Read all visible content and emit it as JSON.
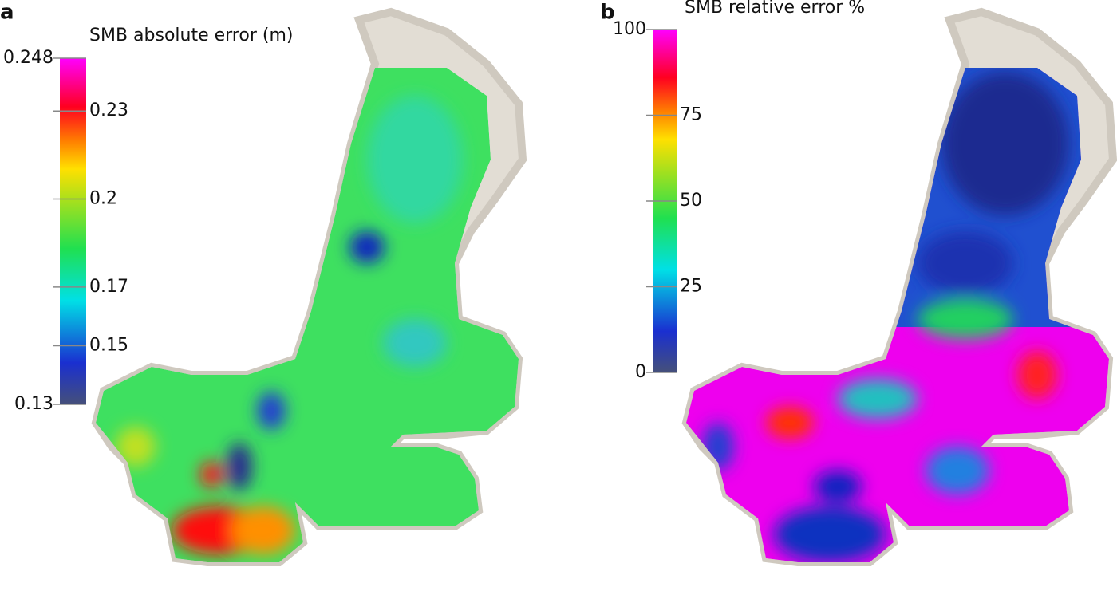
{
  "panels": [
    {
      "label": "a",
      "colorbar": {
        "title": "SMB absolute error (m)",
        "lim": [
          0.13,
          0.248
        ],
        "ticks": [
          0.13,
          0.15,
          0.17,
          0.2,
          0.23,
          0.248
        ]
      }
    },
    {
      "label": "b",
      "colorbar": {
        "title": "SMB relative error %",
        "lim": [
          0,
          100
        ],
        "ticks": [
          0,
          25,
          50,
          75,
          100
        ]
      }
    }
  ]
}
